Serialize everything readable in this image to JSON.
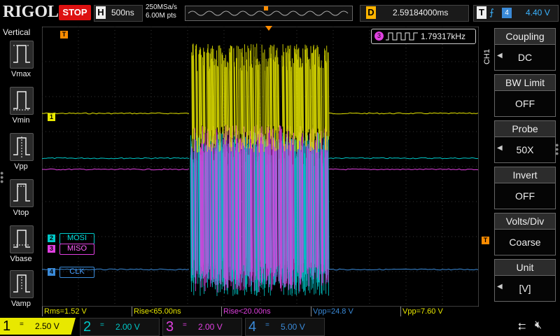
{
  "top": {
    "logo": "RIGOL",
    "run_state": "STOP",
    "timebase_key": "H",
    "timebase": "500ns",
    "sample_rate": "250MSa/s",
    "memory_depth": "6.00M pts",
    "delay_key": "D",
    "delay": "2.59184000ms",
    "trigger_key": "T",
    "trigger_edge": "rising-edge-icon",
    "trigger_source": "4",
    "trigger_level": "4.40 V"
  },
  "left_menu": {
    "title": "Vertical",
    "items": [
      {
        "label": "Vmax",
        "icon": "vmax-icon"
      },
      {
        "label": "Vmin",
        "icon": "vmin-icon"
      },
      {
        "label": "Vpp",
        "icon": "vpp-icon"
      },
      {
        "label": "Vtop",
        "icon": "vtop-icon"
      },
      {
        "label": "Vbase",
        "icon": "vbase-icon"
      },
      {
        "label": "Vamp",
        "icon": "vamp-icon"
      }
    ]
  },
  "right_menu": {
    "channel_tag": "CH1",
    "items": [
      {
        "title": "Coupling",
        "value": "DC"
      },
      {
        "title": "BW Limit",
        "value": "OFF"
      },
      {
        "title": "Probe",
        "value": "50X"
      },
      {
        "title": "Invert",
        "value": "OFF"
      },
      {
        "title": "Volts/Div",
        "value": "Coarse"
      },
      {
        "title": "Unit",
        "value": "[V]"
      }
    ]
  },
  "grid": {
    "freq_channel": "3",
    "freq_value": "1.79317kHz",
    "ch1_marker": "1",
    "ch2_marker": "2",
    "ch3_marker": "3",
    "ch4_marker": "4",
    "trigger_marker": "T",
    "labels": {
      "ch2": "MOSI",
      "ch3": "MISO",
      "ch4": "CLK"
    }
  },
  "measurements": [
    {
      "text": "Rms=1.52 V",
      "color": "#e8e800"
    },
    {
      "text": "Rise<65.00ns",
      "color": "#e8e800"
    },
    {
      "text": "Rise<20.00ns",
      "color": "#e040e0"
    },
    {
      "text": "Vpp=24.8 V",
      "color": "#3a8ad8"
    },
    {
      "text": "Vpp=7.60 V",
      "color": "#e8e800"
    }
  ],
  "channels": [
    {
      "num": "1",
      "coupling": "=",
      "scale": "2.50 V",
      "color": "#e8e800",
      "active": true
    },
    {
      "num": "2",
      "coupling": "=",
      "scale": "2.00 V",
      "color": "#00c8c8",
      "active": false
    },
    {
      "num": "3",
      "coupling": "=",
      "scale": "2.00 V",
      "color": "#e040e0",
      "active": false
    },
    {
      "num": "4",
      "coupling": "=",
      "scale": "5.00 V",
      "color": "#3a8ad8",
      "active": false
    }
  ],
  "colors": {
    "ch1": "#e8e800",
    "ch2": "#00c8c8",
    "ch3": "#e040e0",
    "ch4": "#3a8ad8",
    "trigger": "#ff8c00"
  }
}
